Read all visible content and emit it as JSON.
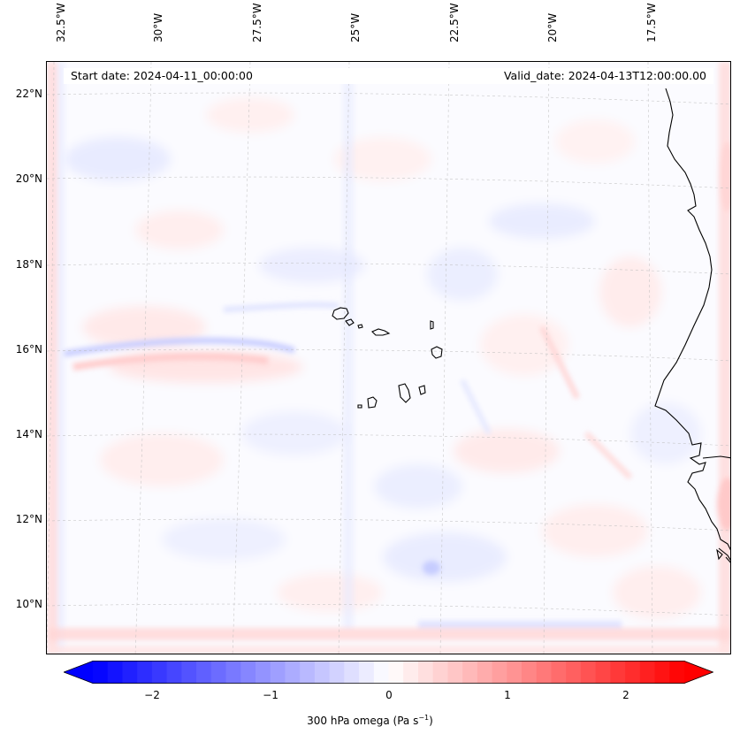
{
  "map": {
    "banner": {
      "start_date": "Start date: 2024-04-11_00:00:00",
      "valid_date": "Valid_date: 2024-04-13T12:00:00.00"
    },
    "longitude_labels": [
      "32.5°W",
      "30°W",
      "27.5°W",
      "25°W",
      "22.5°W",
      "20°W",
      "17.5°W"
    ],
    "latitude_labels": [
      "22°N",
      "20°N",
      "18°N",
      "16°N",
      "14°N",
      "12°N",
      "10°N"
    ],
    "features": [
      "Cape Verde islands",
      "West African coastline"
    ],
    "colormap": {
      "negative": "#0000ff",
      "neutral": "#ffffff",
      "positive": "#ff0000"
    }
  },
  "colorbar": {
    "ticks": [
      "−2",
      "−1",
      "0",
      "1",
      "2"
    ],
    "range": [
      -2.7,
      2.7
    ],
    "label_main": "300 hPa omega (Pa s",
    "label_sup": "−1",
    "label_end": ")"
  }
}
